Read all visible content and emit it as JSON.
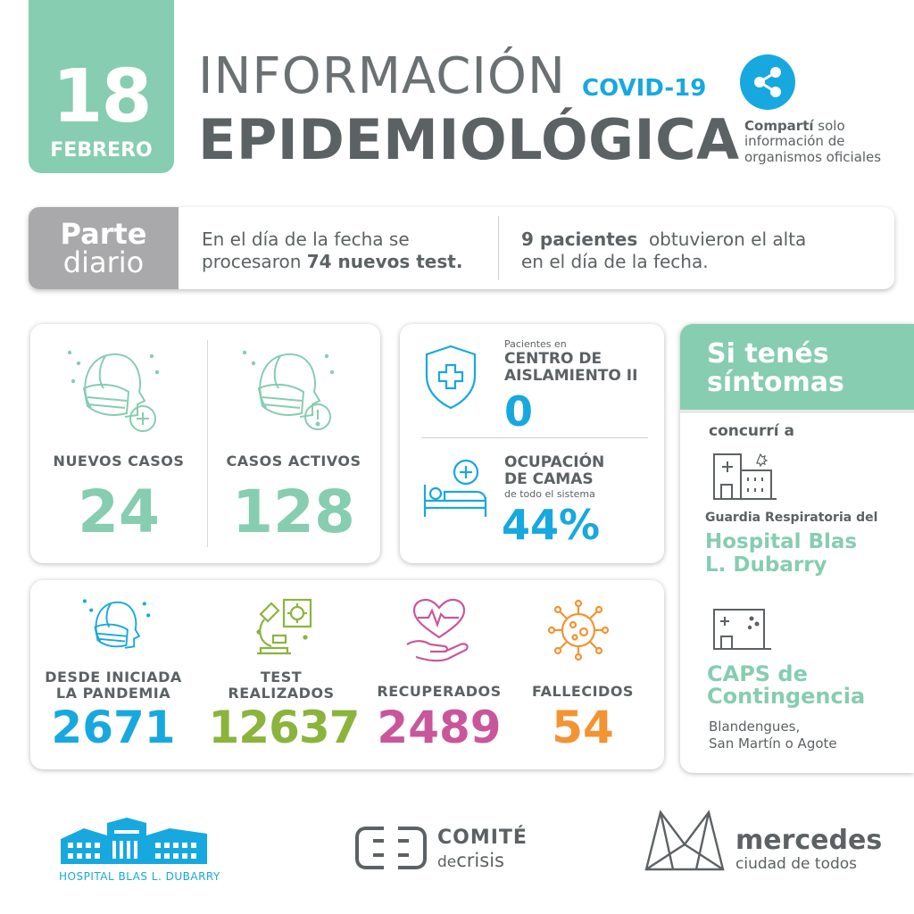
{
  "date": {
    "day": "18",
    "month": "FEBRERO"
  },
  "title": {
    "line1": "INFORMACIÓN",
    "covid": "COVID-19",
    "line2": "EPIDEMIOLÓGICA"
  },
  "share": {
    "bold": "Compartí",
    "rest1": " solo",
    "line2": "información de",
    "line3": "organismos oficiales"
  },
  "parte": {
    "word1": "Parte",
    "word2": "diario",
    "processed": {
      "pre": "En el día de la fecha se",
      "pre2": "procesaron ",
      "bold": "74 nuevos test."
    },
    "discharge": {
      "bold": "9 pacientes",
      "rest": "  obtuvieron el alta",
      "line2": "en el día de la fecha."
    }
  },
  "cases": {
    "new_label": "NUEVOS CASOS",
    "new_value": "24",
    "active_label": "CASOS ACTIVOS",
    "active_value": "128"
  },
  "center": {
    "pre": "Pacientes en",
    "label_line1": "CENTRO DE",
    "label_line2": "AISLAMIENTO II",
    "value": "0",
    "beds_line1": "OCUPACIÓN",
    "beds_line2": "DE CAMAS",
    "beds_sub": "de todo el sistema",
    "beds_value": "44%"
  },
  "totals": [
    {
      "label1": "DESDE INICIADA",
      "label2": "LA PANDEMIA",
      "value": "2671",
      "color": "#17a8e0"
    },
    {
      "label1": "TEST",
      "label2": "REALIZADOS",
      "value": "12637",
      "color": "#8ab43c"
    },
    {
      "label1": "RECUPERADOS",
      "label2": "",
      "value": "2489",
      "color": "#c9569b"
    },
    {
      "label1": "FALLECIDOS",
      "label2": "",
      "value": "54",
      "color": "#f39332"
    }
  ],
  "symptoms": {
    "title1": "Si tenés",
    "title2": "síntomas",
    "go_to": "concurrí a",
    "guardia": "Guardia Respiratoria del",
    "hospital1": "Hospital Blas",
    "hospital2": "L. Dubarry",
    "caps1": "CAPS de",
    "caps2": "Contingencia",
    "address1": "Blandengues,",
    "address2": "San Martín o Agote"
  },
  "footer": {
    "hospital": "HOSPITAL BLAS L. DUBARRY",
    "comite_title": "COMITÉ",
    "comite_de": "de",
    "comite_crisis": "crisis",
    "mercedes_title": "mercedes",
    "mercedes_sub": "ciudad de todos"
  },
  "colors": {
    "teal": "#86cdb2",
    "blue": "#17a8e0",
    "grey": "#5c6163",
    "green": "#8ab43c",
    "pink": "#c9569b",
    "orange": "#f39332"
  }
}
